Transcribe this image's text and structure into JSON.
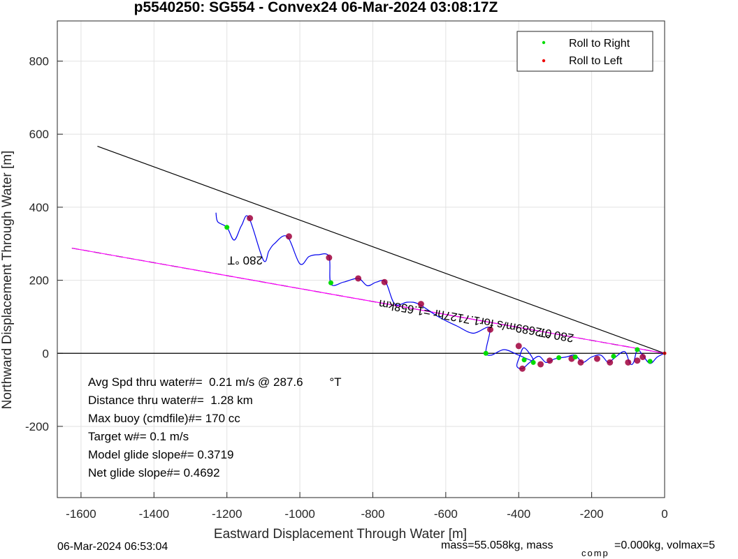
{
  "chart_data": {
    "type": "line",
    "title": "p5540250: SG554 - Convex24 06-Mar-2024 03:08:17Z",
    "xlabel": "Eastward Displacement Through Water [m]",
    "ylabel": "Northward Displacement Through Water [m]",
    "xlim": [
      -1665,
      0
    ],
    "ylim": [
      -395,
      910
    ],
    "xticks": [
      -1600,
      -1400,
      -1200,
      -1000,
      -800,
      -600,
      -400,
      -200,
      0
    ],
    "yticks": [
      -200,
      0,
      200,
      400,
      600,
      800
    ],
    "grid": true,
    "legend_position": "top-right",
    "legend": [
      {
        "label": "Roll to Right",
        "color": "#00dd00"
      },
      {
        "label": "Roll to Left",
        "color": "#ee0000"
      }
    ],
    "series": [
      {
        "name": "",
        "color": "#0000ee",
        "points": [
          [
            0,
            0
          ],
          [
            -20,
            -10
          ],
          [
            -40,
            -28
          ],
          [
            -60,
            -5
          ],
          [
            -75,
            10
          ],
          [
            -85,
            -25
          ],
          [
            -95,
            -28
          ],
          [
            -110,
            5
          ],
          [
            -140,
            -15
          ],
          [
            -155,
            -25
          ],
          [
            -175,
            -5
          ],
          [
            -200,
            -10
          ],
          [
            -225,
            -25
          ],
          [
            -245,
            -5
          ],
          [
            -270,
            -10
          ],
          [
            -300,
            -15
          ],
          [
            -325,
            -25
          ],
          [
            -345,
            -8
          ],
          [
            -370,
            -25
          ],
          [
            -390,
            -42
          ],
          [
            -405,
            -35
          ],
          [
            -398,
            -10
          ],
          [
            -385,
            15
          ],
          [
            -360,
            -20
          ],
          [
            -400,
            -5
          ],
          [
            -440,
            10
          ],
          [
            -475,
            -5
          ],
          [
            -490,
            5
          ],
          [
            -480,
            70
          ],
          [
            -525,
            55
          ],
          [
            -570,
            75
          ],
          [
            -620,
            100
          ],
          [
            -675,
            135
          ],
          [
            -705,
            140
          ],
          [
            -740,
            135
          ],
          [
            -765,
            195
          ],
          [
            -790,
            195
          ],
          [
            -815,
            185
          ],
          [
            -840,
            205
          ],
          [
            -880,
            195
          ],
          [
            -915,
            190
          ],
          [
            -920,
            265
          ],
          [
            -950,
            270
          ],
          [
            -975,
            265
          ],
          [
            -1000,
            245
          ],
          [
            -1035,
            320
          ],
          [
            -1070,
            300
          ],
          [
            -1085,
            280
          ],
          [
            -1100,
            255
          ],
          [
            -1140,
            372
          ],
          [
            -1160,
            350
          ],
          [
            -1180,
            310
          ],
          [
            -1200,
            345
          ],
          [
            -1225,
            360
          ],
          [
            -1230,
            385
          ]
        ]
      }
    ],
    "roll_right": [
      [
        -1200,
        345
      ],
      [
        -915,
        193
      ],
      [
        -490,
        0
      ],
      [
        -385,
        -18
      ],
      [
        -360,
        -25
      ],
      [
        -290,
        -12
      ],
      [
        -245,
        -10
      ],
      [
        -140,
        -8
      ],
      [
        -75,
        10
      ],
      [
        -40,
        -22
      ]
    ],
    "roll_left": [
      [
        -1137,
        370
      ],
      [
        -1030,
        320
      ],
      [
        -920,
        262
      ],
      [
        -840,
        205
      ],
      [
        -768,
        195
      ],
      [
        -668,
        135
      ],
      [
        -478,
        65
      ],
      [
        -400,
        20
      ],
      [
        -390,
        -42
      ],
      [
        -340,
        -30
      ],
      [
        -315,
        -20
      ],
      [
        -255,
        -15
      ],
      [
        -230,
        -25
      ],
      [
        -185,
        -15
      ],
      [
        -150,
        -25
      ],
      [
        -100,
        -25
      ],
      [
        -75,
        -20
      ],
      [
        -60,
        -10
      ]
    ],
    "lines": [
      {
        "name": "heading-280-solid",
        "color": "#000000",
        "dash": false,
        "from": [
          -1555,
          567
        ],
        "to": [
          0,
          0
        ]
      },
      {
        "name": "heading-280-dashed",
        "color": "#000000",
        "dash": true,
        "from": [
          -1625,
          288
        ],
        "to": [
          0,
          0
        ]
      },
      {
        "name": "track-magenta",
        "color": "#ff00ff",
        "dash": false,
        "from": [
          -1625,
          288
        ],
        "to": [
          0,
          0
        ]
      },
      {
        "name": "zero-line",
        "color": "#000000",
        "dash": false,
        "from": [
          -1665,
          0
        ],
        "to": [
          0,
          0
        ]
      }
    ],
    "rotated_labels": [
      {
        "text": "280 °T",
        "x": -1150,
        "y": 265,
        "angle": 180
      },
      {
        "text": "280 °T",
        "x": -295,
        "y": 60,
        "angle": 190
      },
      {
        "text": "0.2689m/s for1.7127hr =1.658km",
        "x": -545,
        "y": 105,
        "angle": 190
      }
    ],
    "annotations": [
      "Avg Spd thru water#=  0.21 m/s @ 287.6        °T",
      "Distance thru water#=  1.28 km",
      "Max buoy (cmdfile)#= 170 cc",
      "Target w#= 0.1 m/s",
      "Model glide slope#= 0.3719",
      "Net glide slope#= 0.4692"
    ]
  },
  "footer": {
    "timestamp": "06-Mar-2024 06:53:04",
    "mass_text": "mass=55.058kg, mass",
    "comp_subscript": "comp",
    "volmax_text": "=0.000kg, volmax=5"
  }
}
